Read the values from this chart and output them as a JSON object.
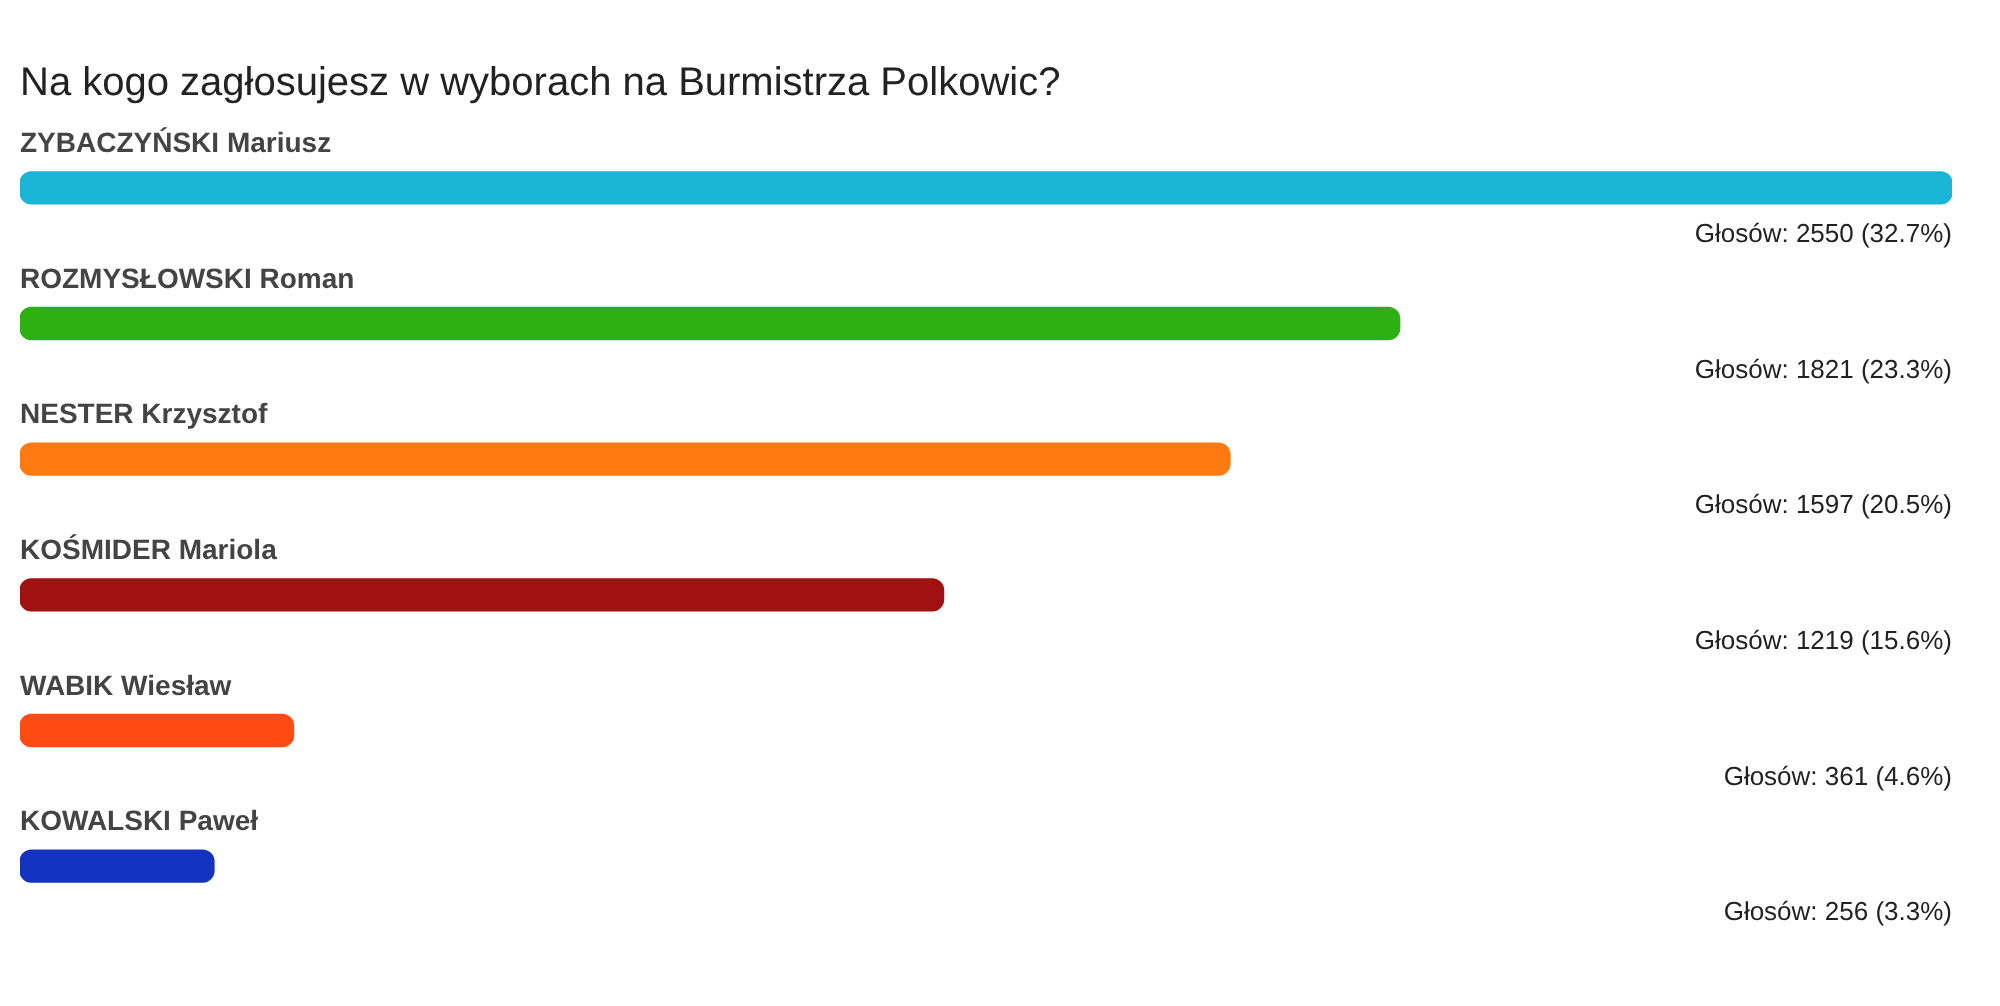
{
  "chart_data": {
    "type": "bar",
    "orientation": "horizontal",
    "title": "Na kogo zagłosujesz w wyborach na Burmistrza Polkowic?",
    "categories": [
      "ZYBACZYŃSKI Mariusz",
      "ROZMYSŁOWSKI Roman",
      "NESTER Krzysztof",
      "KOŚMIDER Mariola",
      "WABIK Wiesław",
      "KOWALSKI Paweł"
    ],
    "values": [
      2550,
      1821,
      1597,
      1219,
      361,
      256
    ],
    "colors": [
      "#1ab4d6",
      "#2fb012",
      "#ff7a12",
      "#a01212",
      "#ff4a12",
      "#1432c0"
    ],
    "value_labels": [
      "Głosów: 2550 (32.7%)",
      "Głosów: 1821 (23.3%)",
      "Głosów: 1597 (20.5%)",
      "Głosów: 1219 (15.6%)",
      "Głosów: 361 (4.6%)",
      "Głosów: 256 (3.3%)"
    ],
    "legend": false
  }
}
